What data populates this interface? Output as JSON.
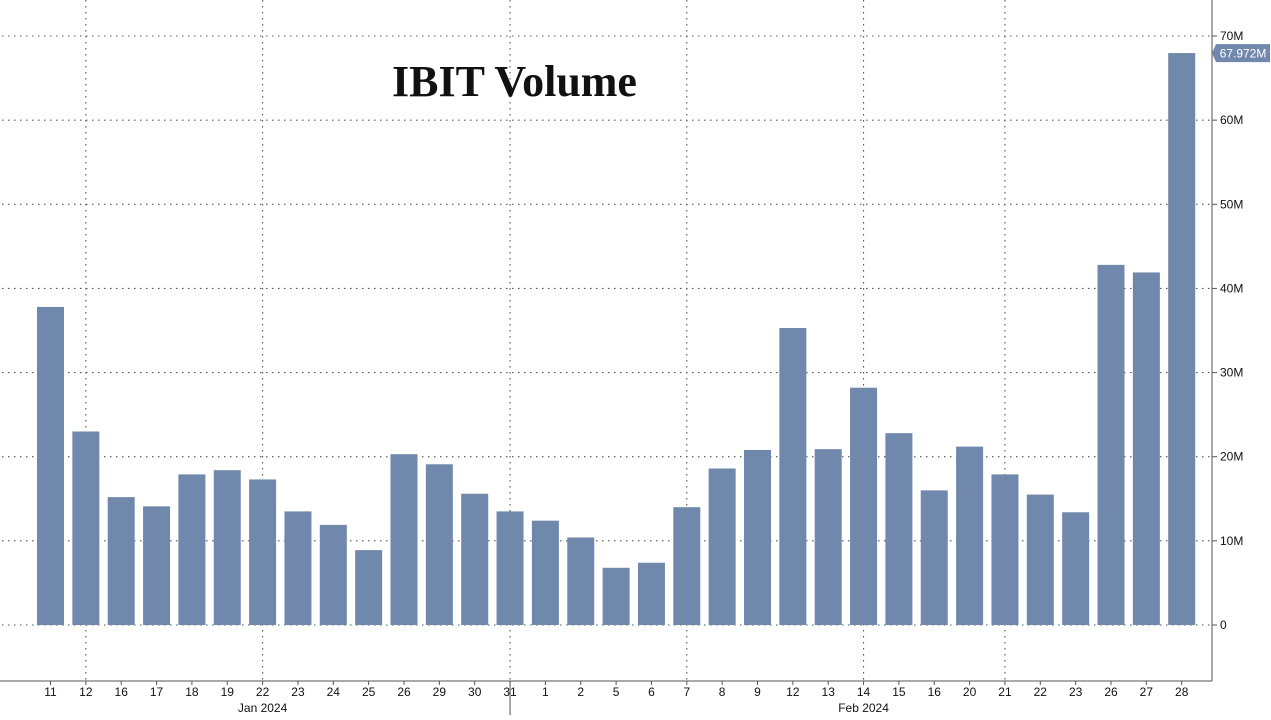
{
  "chart_data": {
    "type": "bar",
    "title": "IBIT Volume",
    "categories": [
      "11",
      "12",
      "16",
      "17",
      "18",
      "19",
      "22",
      "23",
      "24",
      "25",
      "26",
      "29",
      "30",
      "31",
      "1",
      "2",
      "5",
      "6",
      "7",
      "8",
      "9",
      "12",
      "13",
      "14",
      "15",
      "16",
      "20",
      "21",
      "22",
      "23",
      "26",
      "27",
      "28"
    ],
    "month_labels": [
      {
        "label": "Jan 2024",
        "category_index": 6
      },
      {
        "label": "Feb 2024",
        "category_index": 23
      }
    ],
    "values": [
      37.8,
      23.0,
      15.2,
      14.1,
      17.9,
      18.4,
      17.3,
      13.5,
      11.9,
      8.9,
      20.3,
      19.1,
      15.6,
      13.5,
      12.4,
      10.4,
      6.8,
      7.4,
      14.0,
      18.6,
      20.8,
      35.3,
      20.9,
      28.2,
      22.8,
      16.0,
      21.2,
      17.9,
      15.5,
      13.4,
      42.8,
      41.9,
      67.972
    ],
    "value_unit": "M",
    "last_value_label": "67.972M",
    "ylim": [
      -7,
      74
    ],
    "yticks": [
      0,
      10,
      20,
      30,
      40,
      50,
      60,
      70
    ],
    "ytick_labels": [
      "0",
      "10M",
      "20M",
      "30M",
      "40M",
      "50M",
      "60M",
      "70M"
    ],
    "grid": true,
    "y_axis_side": "right",
    "xlabel": "",
    "ylabel": "",
    "colors": {
      "bar": "#7088ab",
      "grid": "#555555",
      "axis": "#555555",
      "tick_text": "#111111",
      "badge_bg": "#7088ab",
      "badge_text": "#ffffff"
    }
  }
}
